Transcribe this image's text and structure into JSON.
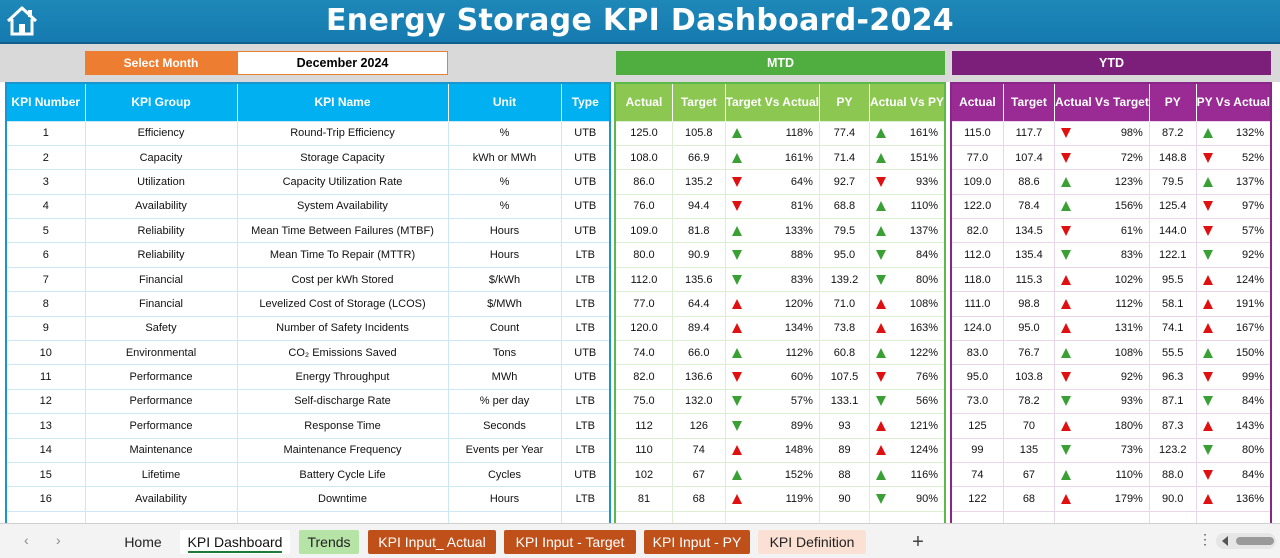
{
  "title": "Energy Storage KPI Dashboard-2024",
  "select_month": {
    "label": "Select Month",
    "value": "December 2024"
  },
  "sections": {
    "mtd": "MTD",
    "ytd": "YTD"
  },
  "left_headers": [
    "KPI Number",
    "KPI Group",
    "KPI Name",
    "Unit",
    "Type"
  ],
  "mtd_headers": [
    "Actual",
    "Target",
    "Target Vs Actual",
    "PY",
    "Actual Vs PY"
  ],
  "ytd_headers": [
    "Actual",
    "Target",
    "Actual Vs Target",
    "PY",
    "PY Vs Actual"
  ],
  "rows": [
    {
      "num": "1",
      "group": "Efficiency",
      "name": "Round-Trip Efficiency",
      "unit": "%",
      "type": "UTB",
      "m_act": "125.0",
      "m_tgt": "105.8",
      "m_tva": "118%",
      "m_tva_dir": "up",
      "m_tva_color": "green",
      "m_py": "77.4",
      "m_avp": "161%",
      "m_avp_dir": "up",
      "m_avp_color": "green",
      "y_act": "115.0",
      "y_tgt": "117.7",
      "y_avt": "98%",
      "y_avt_dir": "down",
      "y_avt_color": "red",
      "y_py": "87.2",
      "y_pva": "132%",
      "y_pva_dir": "up",
      "y_pva_color": "green"
    },
    {
      "num": "2",
      "group": "Capacity",
      "name": "Storage Capacity",
      "unit": "kWh or MWh",
      "type": "UTB",
      "m_act": "108.0",
      "m_tgt": "66.9",
      "m_tva": "161%",
      "m_tva_dir": "up",
      "m_tva_color": "green",
      "m_py": "71.4",
      "m_avp": "151%",
      "m_avp_dir": "up",
      "m_avp_color": "green",
      "y_act": "77.0",
      "y_tgt": "107.4",
      "y_avt": "72%",
      "y_avt_dir": "down",
      "y_avt_color": "red",
      "y_py": "148.8",
      "y_pva": "52%",
      "y_pva_dir": "down",
      "y_pva_color": "red"
    },
    {
      "num": "3",
      "group": "Utilization",
      "name": "Capacity Utilization Rate",
      "unit": "%",
      "type": "UTB",
      "m_act": "86.0",
      "m_tgt": "135.2",
      "m_tva": "64%",
      "m_tva_dir": "down",
      "m_tva_color": "red",
      "m_py": "92.7",
      "m_avp": "93%",
      "m_avp_dir": "down",
      "m_avp_color": "red",
      "y_act": "109.0",
      "y_tgt": "88.6",
      "y_avt": "123%",
      "y_avt_dir": "up",
      "y_avt_color": "green",
      "y_py": "79.5",
      "y_pva": "137%",
      "y_pva_dir": "up",
      "y_pva_color": "green"
    },
    {
      "num": "4",
      "group": "Availability",
      "name": "System Availability",
      "unit": "%",
      "type": "UTB",
      "m_act": "76.0",
      "m_tgt": "94.4",
      "m_tva": "81%",
      "m_tva_dir": "down",
      "m_tva_color": "red",
      "m_py": "68.8",
      "m_avp": "110%",
      "m_avp_dir": "up",
      "m_avp_color": "green",
      "y_act": "122.0",
      "y_tgt": "78.4",
      "y_avt": "156%",
      "y_avt_dir": "up",
      "y_avt_color": "green",
      "y_py": "125.4",
      "y_pva": "97%",
      "y_pva_dir": "down",
      "y_pva_color": "red"
    },
    {
      "num": "5",
      "group": "Reliability",
      "name": "Mean Time Between Failures (MTBF)",
      "unit": "Hours",
      "type": "UTB",
      "m_act": "109.0",
      "m_tgt": "81.8",
      "m_tva": "133%",
      "m_tva_dir": "up",
      "m_tva_color": "green",
      "m_py": "79.5",
      "m_avp": "137%",
      "m_avp_dir": "up",
      "m_avp_color": "green",
      "y_act": "82.0",
      "y_tgt": "134.5",
      "y_avt": "61%",
      "y_avt_dir": "down",
      "y_avt_color": "red",
      "y_py": "144.0",
      "y_pva": "57%",
      "y_pva_dir": "down",
      "y_pva_color": "red"
    },
    {
      "num": "6",
      "group": "Reliability",
      "name": "Mean Time To Repair (MTTR)",
      "unit": "Hours",
      "type": "LTB",
      "m_act": "80.0",
      "m_tgt": "90.9",
      "m_tva": "88%",
      "m_tva_dir": "down",
      "m_tva_color": "green",
      "m_py": "95.0",
      "m_avp": "84%",
      "m_avp_dir": "down",
      "m_avp_color": "green",
      "y_act": "112.0",
      "y_tgt": "135.4",
      "y_avt": "83%",
      "y_avt_dir": "down",
      "y_avt_color": "green",
      "y_py": "122.1",
      "y_pva": "92%",
      "y_pva_dir": "down",
      "y_pva_color": "green"
    },
    {
      "num": "7",
      "group": "Financial",
      "name": "Cost per kWh Stored",
      "unit": "$/kWh",
      "type": "LTB",
      "m_act": "112.0",
      "m_tgt": "135.6",
      "m_tva": "83%",
      "m_tva_dir": "down",
      "m_tva_color": "green",
      "m_py": "139.2",
      "m_avp": "80%",
      "m_avp_dir": "down",
      "m_avp_color": "green",
      "y_act": "118.0",
      "y_tgt": "115.3",
      "y_avt": "102%",
      "y_avt_dir": "up",
      "y_avt_color": "red",
      "y_py": "95.5",
      "y_pva": "124%",
      "y_pva_dir": "up",
      "y_pva_color": "red"
    },
    {
      "num": "8",
      "group": "Financial",
      "name": "Levelized Cost of Storage (LCOS)",
      "unit": "$/MWh",
      "type": "LTB",
      "m_act": "77.0",
      "m_tgt": "64.4",
      "m_tva": "120%",
      "m_tva_dir": "up",
      "m_tva_color": "red",
      "m_py": "71.0",
      "m_avp": "108%",
      "m_avp_dir": "up",
      "m_avp_color": "red",
      "y_act": "111.0",
      "y_tgt": "98.8",
      "y_avt": "112%",
      "y_avt_dir": "up",
      "y_avt_color": "red",
      "y_py": "58.1",
      "y_pva": "191%",
      "y_pva_dir": "up",
      "y_pva_color": "red"
    },
    {
      "num": "9",
      "group": "Safety",
      "name": "Number of Safety Incidents",
      "unit": "Count",
      "type": "LTB",
      "m_act": "120.0",
      "m_tgt": "89.4",
      "m_tva": "134%",
      "m_tva_dir": "up",
      "m_tva_color": "red",
      "m_py": "73.8",
      "m_avp": "163%",
      "m_avp_dir": "up",
      "m_avp_color": "red",
      "y_act": "124.0",
      "y_tgt": "95.0",
      "y_avt": "131%",
      "y_avt_dir": "up",
      "y_avt_color": "red",
      "y_py": "74.1",
      "y_pva": "167%",
      "y_pva_dir": "up",
      "y_pva_color": "red"
    },
    {
      "num": "10",
      "group": "Environmental",
      "name": "CO₂ Emissions Saved",
      "unit": "Tons",
      "type": "UTB",
      "m_act": "74.0",
      "m_tgt": "66.0",
      "m_tva": "112%",
      "m_tva_dir": "up",
      "m_tva_color": "green",
      "m_py": "60.8",
      "m_avp": "122%",
      "m_avp_dir": "up",
      "m_avp_color": "green",
      "y_act": "83.0",
      "y_tgt": "76.7",
      "y_avt": "108%",
      "y_avt_dir": "up",
      "y_avt_color": "green",
      "y_py": "55.5",
      "y_pva": "150%",
      "y_pva_dir": "up",
      "y_pva_color": "green"
    },
    {
      "num": "11",
      "group": "Performance",
      "name": "Energy Throughput",
      "unit": "MWh",
      "type": "UTB",
      "m_act": "82.0",
      "m_tgt": "136.6",
      "m_tva": "60%",
      "m_tva_dir": "down",
      "m_tva_color": "red",
      "m_py": "107.5",
      "m_avp": "76%",
      "m_avp_dir": "down",
      "m_avp_color": "red",
      "y_act": "95.0",
      "y_tgt": "103.8",
      "y_avt": "92%",
      "y_avt_dir": "down",
      "y_avt_color": "red",
      "y_py": "96.3",
      "y_pva": "99%",
      "y_pva_dir": "down",
      "y_pva_color": "red"
    },
    {
      "num": "12",
      "group": "Performance",
      "name": "Self-discharge Rate",
      "unit": "% per day",
      "type": "LTB",
      "m_act": "75.0",
      "m_tgt": "132.0",
      "m_tva": "57%",
      "m_tva_dir": "down",
      "m_tva_color": "green",
      "m_py": "133.1",
      "m_avp": "56%",
      "m_avp_dir": "down",
      "m_avp_color": "green",
      "y_act": "73.0",
      "y_tgt": "78.2",
      "y_avt": "93%",
      "y_avt_dir": "down",
      "y_avt_color": "green",
      "y_py": "87.1",
      "y_pva": "84%",
      "y_pva_dir": "down",
      "y_pva_color": "green"
    },
    {
      "num": "13",
      "group": "Performance",
      "name": "Response Time",
      "unit": "Seconds",
      "type": "LTB",
      "m_act": "112",
      "m_tgt": "126",
      "m_tva": "89%",
      "m_tva_dir": "down",
      "m_tva_color": "green",
      "m_py": "93",
      "m_avp": "121%",
      "m_avp_dir": "up",
      "m_avp_color": "red",
      "y_act": "125",
      "y_tgt": "70",
      "y_avt": "180%",
      "y_avt_dir": "up",
      "y_avt_color": "red",
      "y_py": "87.3",
      "y_pva": "143%",
      "y_pva_dir": "up",
      "y_pva_color": "red"
    },
    {
      "num": "14",
      "group": "Maintenance",
      "name": "Maintenance Frequency",
      "unit": "Events per Year",
      "type": "LTB",
      "m_act": "110",
      "m_tgt": "74",
      "m_tva": "148%",
      "m_tva_dir": "up",
      "m_tva_color": "red",
      "m_py": "89",
      "m_avp": "124%",
      "m_avp_dir": "up",
      "m_avp_color": "red",
      "y_act": "99",
      "y_tgt": "135",
      "y_avt": "73%",
      "y_avt_dir": "down",
      "y_avt_color": "green",
      "y_py": "123.2",
      "y_pva": "80%",
      "y_pva_dir": "down",
      "y_pva_color": "green"
    },
    {
      "num": "15",
      "group": "Lifetime",
      "name": "Battery Cycle Life",
      "unit": "Cycles",
      "type": "UTB",
      "m_act": "102",
      "m_tgt": "67",
      "m_tva": "152%",
      "m_tva_dir": "up",
      "m_tva_color": "green",
      "m_py": "88",
      "m_avp": "116%",
      "m_avp_dir": "up",
      "m_avp_color": "green",
      "y_act": "74",
      "y_tgt": "67",
      "y_avt": "110%",
      "y_avt_dir": "up",
      "y_avt_color": "green",
      "y_py": "88.0",
      "y_pva": "84%",
      "y_pva_dir": "down",
      "y_pva_color": "red"
    },
    {
      "num": "16",
      "group": "Availability",
      "name": "Downtime",
      "unit": "Hours",
      "type": "LTB",
      "m_act": "81",
      "m_tgt": "68",
      "m_tva": "119%",
      "m_tva_dir": "up",
      "m_tva_color": "red",
      "m_py": "90",
      "m_avp": "90%",
      "m_avp_dir": "down",
      "m_avp_color": "green",
      "y_act": "122",
      "y_tgt": "68",
      "y_avt": "179%",
      "y_avt_dir": "up",
      "y_avt_color": "red",
      "y_py": "90.0",
      "y_pva": "136%",
      "y_pva_dir": "up",
      "y_pva_color": "red"
    }
  ],
  "sheet_tabs": [
    "Home",
    "KPI Dashboard",
    "Trends",
    "KPI Input_ Actual",
    "KPI Input - Target",
    "KPI Input - PY",
    "KPI Definition"
  ],
  "active_tab": "KPI Dashboard",
  "add_sheet": "+",
  "more": "⋮",
  "colors": {
    "title_bar": "#1e88b8",
    "left_header": "#00b0f0",
    "mtd": "#4fae3f",
    "mtd_header": "#8cc751",
    "ytd": "#7b1f7b",
    "ytd_header": "#9a2b95",
    "select_label": "#ed7d31",
    "up": "#3aa035",
    "down": "#e01010"
  }
}
